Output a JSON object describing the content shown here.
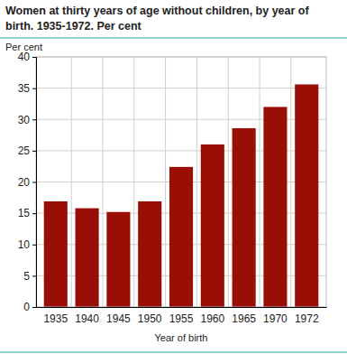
{
  "chart_data": {
    "type": "bar",
    "title": "Women at thirty years of age without children, by year of birth. 1935-1972. Per cent",
    "y_label": "Per cent",
    "x_label": "Year of birth",
    "categories": [
      "1935",
      "1940",
      "1945",
      "1950",
      "1955",
      "1960",
      "1965",
      "1970",
      "1972"
    ],
    "values": [
      16.9,
      15.8,
      15.2,
      16.9,
      22.4,
      26.0,
      28.6,
      32.0,
      35.6
    ],
    "color": "#990f05",
    "ylim": [
      0,
      40
    ],
    "yticks": [
      0,
      5,
      10,
      15,
      20,
      25,
      30,
      35,
      40
    ],
    "grid": true
  }
}
